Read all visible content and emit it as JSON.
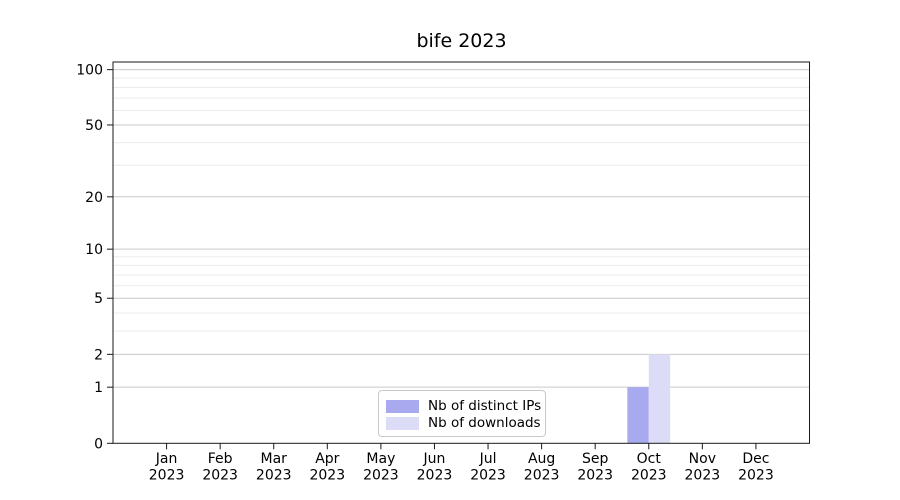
{
  "chart_data": {
    "type": "bar",
    "title": "bife 2023",
    "x_categories": [
      "Jan",
      "Feb",
      "Mar",
      "Apr",
      "May",
      "Jun",
      "Jul",
      "Aug",
      "Sep",
      "Oct",
      "Nov",
      "Dec"
    ],
    "x_year_line": "2023",
    "series": [
      {
        "name": "Nb of distinct IPs",
        "color": "#a9a9f0",
        "values": [
          0,
          0,
          0,
          0,
          0,
          0,
          0,
          0,
          0,
          1,
          0,
          0
        ]
      },
      {
        "name": "Nb of downloads",
        "color": "#dcdcf7",
        "values": [
          0,
          0,
          0,
          0,
          0,
          0,
          0,
          0,
          0,
          2,
          0,
          0
        ]
      }
    ],
    "y_scale": "log1p",
    "y_major_ticks": [
      0,
      1,
      2,
      5,
      10,
      20,
      50,
      100
    ],
    "y_minor_ticks": [
      3,
      4,
      6,
      7,
      8,
      9,
      30,
      40,
      60,
      70,
      80,
      90
    ],
    "ylim": [
      0,
      110
    ],
    "grid": "both",
    "legend_position": "lower center"
  },
  "colors": {
    "major_grid": "#c9c9c9",
    "minor_grid": "#ebebeb",
    "axis": "#1a1a1a",
    "text": "#000000"
  }
}
